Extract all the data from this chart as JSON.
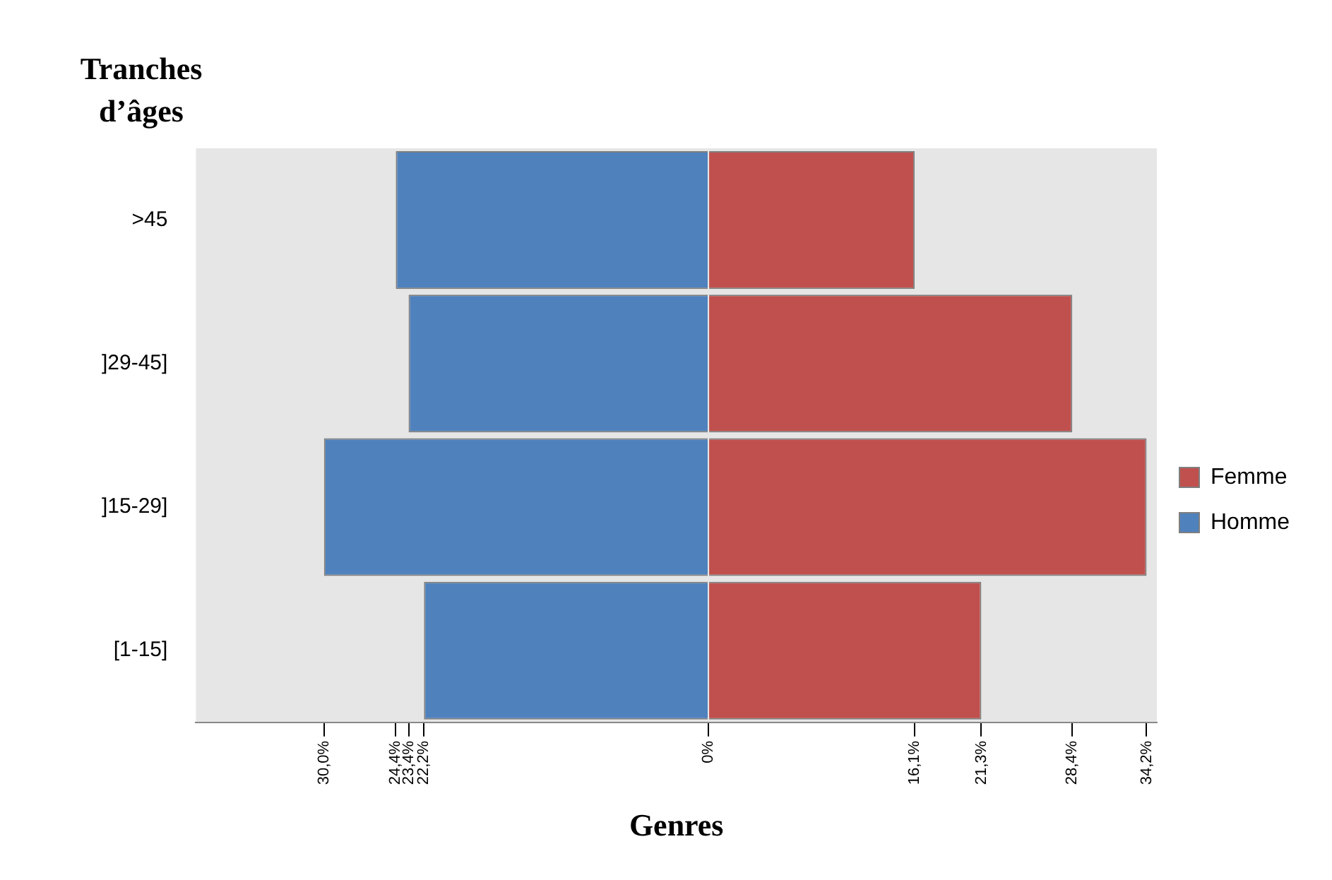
{
  "chart_data": {
    "type": "bar",
    "orientation": "horizontal",
    "stacked": true,
    "xlabel": "Genres",
    "ylabel": "Tranches d’âges",
    "categories": [
      ">45",
      "]29-45]",
      "]15-29]",
      "[1-15]"
    ],
    "series": [
      {
        "name": "Homme",
        "color": "#4f81bd",
        "values": [
          -24.4,
          -23.4,
          -30.0,
          -22.2
        ]
      },
      {
        "name": "Femme",
        "color": "#c0504d",
        "values": [
          16.1,
          28.4,
          34.2,
          21.3
        ]
      }
    ],
    "xlim": [
      -40,
      35
    ],
    "xticks": [
      {
        "value": -30,
        "label": "30,0%"
      },
      {
        "value": -24.4,
        "label": "24,4%"
      },
      {
        "value": -23.4,
        "label": "23,4%"
      },
      {
        "value": -22.2,
        "label": "22,2%"
      },
      {
        "value": 0,
        "label": "0%"
      },
      {
        "value": 16.1,
        "label": "16,1%"
      },
      {
        "value": 21.3,
        "label": "21,3%"
      },
      {
        "value": 28.4,
        "label": "28,4%"
      },
      {
        "value": 34.2,
        "label": "34,2%"
      }
    ],
    "legend": "right"
  }
}
